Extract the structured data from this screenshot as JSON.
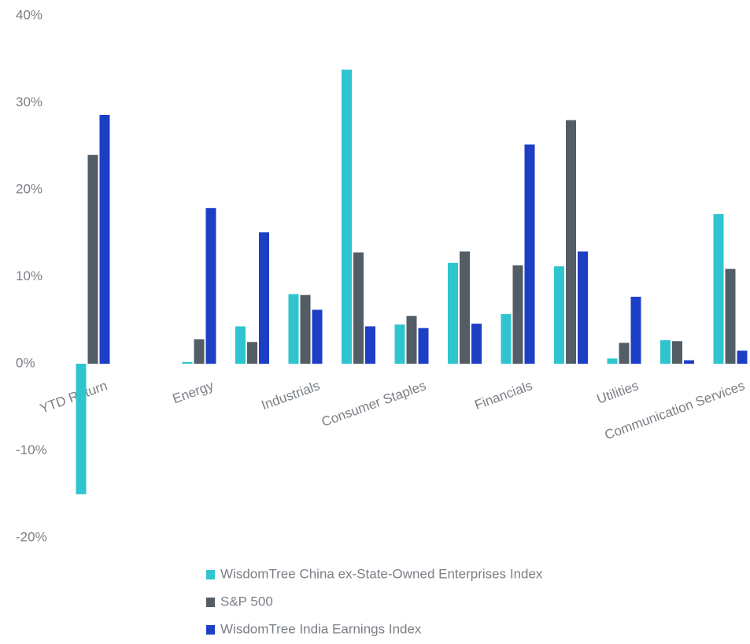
{
  "chart_data": {
    "type": "bar",
    "categories": [
      "YTD Return",
      null,
      "Energy",
      null,
      "Industrials",
      null,
      "Consumer Staples",
      null,
      "Financials",
      null,
      "Utilities",
      null,
      "Communication Services"
    ],
    "series": [
      {
        "name": "WisdomTree China ex-State-Owned Enterprises Index",
        "color": "#2ec5cf",
        "values": [
          -15,
          null,
          0.2,
          4.3,
          8,
          33.8,
          4.5,
          11.6,
          5.7,
          11.2,
          0.6,
          2.7,
          17.2
        ]
      },
      {
        "name": "S&P 500",
        "color": "#535d66",
        "values": [
          24,
          null,
          2.8,
          2.5,
          7.9,
          12.8,
          5.5,
          12.9,
          11.3,
          28,
          2.4,
          2.6,
          10.9
        ]
      },
      {
        "name": "WisdomTree India Earnings Index",
        "color": "#1c3fc6",
        "values": [
          28.6,
          null,
          17.9,
          15.1,
          6.2,
          4.3,
          4.1,
          4.6,
          25.2,
          12.9,
          7.7,
          0.4,
          1.5
        ]
      }
    ],
    "ylim": [
      -20,
      40
    ],
    "yticks": [
      {
        "value": -20,
        "label": "-20%"
      },
      {
        "value": -10,
        "label": "-10%"
      },
      {
        "value": 0,
        "label": "0%"
      },
      {
        "value": 10,
        "label": "10%"
      },
      {
        "value": 20,
        "label": "20%"
      },
      {
        "value": 30,
        "label": "30%"
      },
      {
        "value": 40,
        "label": "40%"
      }
    ],
    "grid": false
  }
}
